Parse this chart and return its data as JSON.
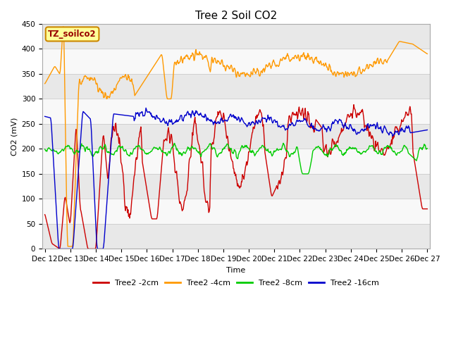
{
  "title": "Tree 2 Soil CO2",
  "xlabel": "Time",
  "ylabel": "CO2 (mV)",
  "ylim": [
    0,
    450
  ],
  "bg_color": "#ffffff",
  "plot_bg_light": "#f0f0f0",
  "plot_bg_dark": "#e0e0e0",
  "legend_label": "TZ_soilco2",
  "legend_box_color": "#ffff99",
  "legend_box_edge": "#cc8800",
  "series_colors": {
    "2cm": "#cc0000",
    "4cm": "#ff9900",
    "8cm": "#00cc00",
    "16cm": "#0000cc"
  },
  "series_labels": [
    "Tree2 -2cm",
    "Tree2 -4cm",
    "Tree2 -8cm",
    "Tree2 -16cm"
  ],
  "x_tick_labels": [
    "Dec 12",
    "Dec 13",
    "Dec 14",
    "Dec 15",
    "Dec 16",
    "Dec 17",
    "Dec 18",
    "Dec 19",
    "Dec 20",
    "Dec 21",
    "Dec 22",
    "Dec 23",
    "Dec 24",
    "Dec 25",
    "Dec 26",
    "Dec 27"
  ],
  "grid_color": "#cccccc",
  "line_width": 1.0,
  "title_fontsize": 11,
  "axis_fontsize": 8,
  "tick_fontsize": 7.5
}
